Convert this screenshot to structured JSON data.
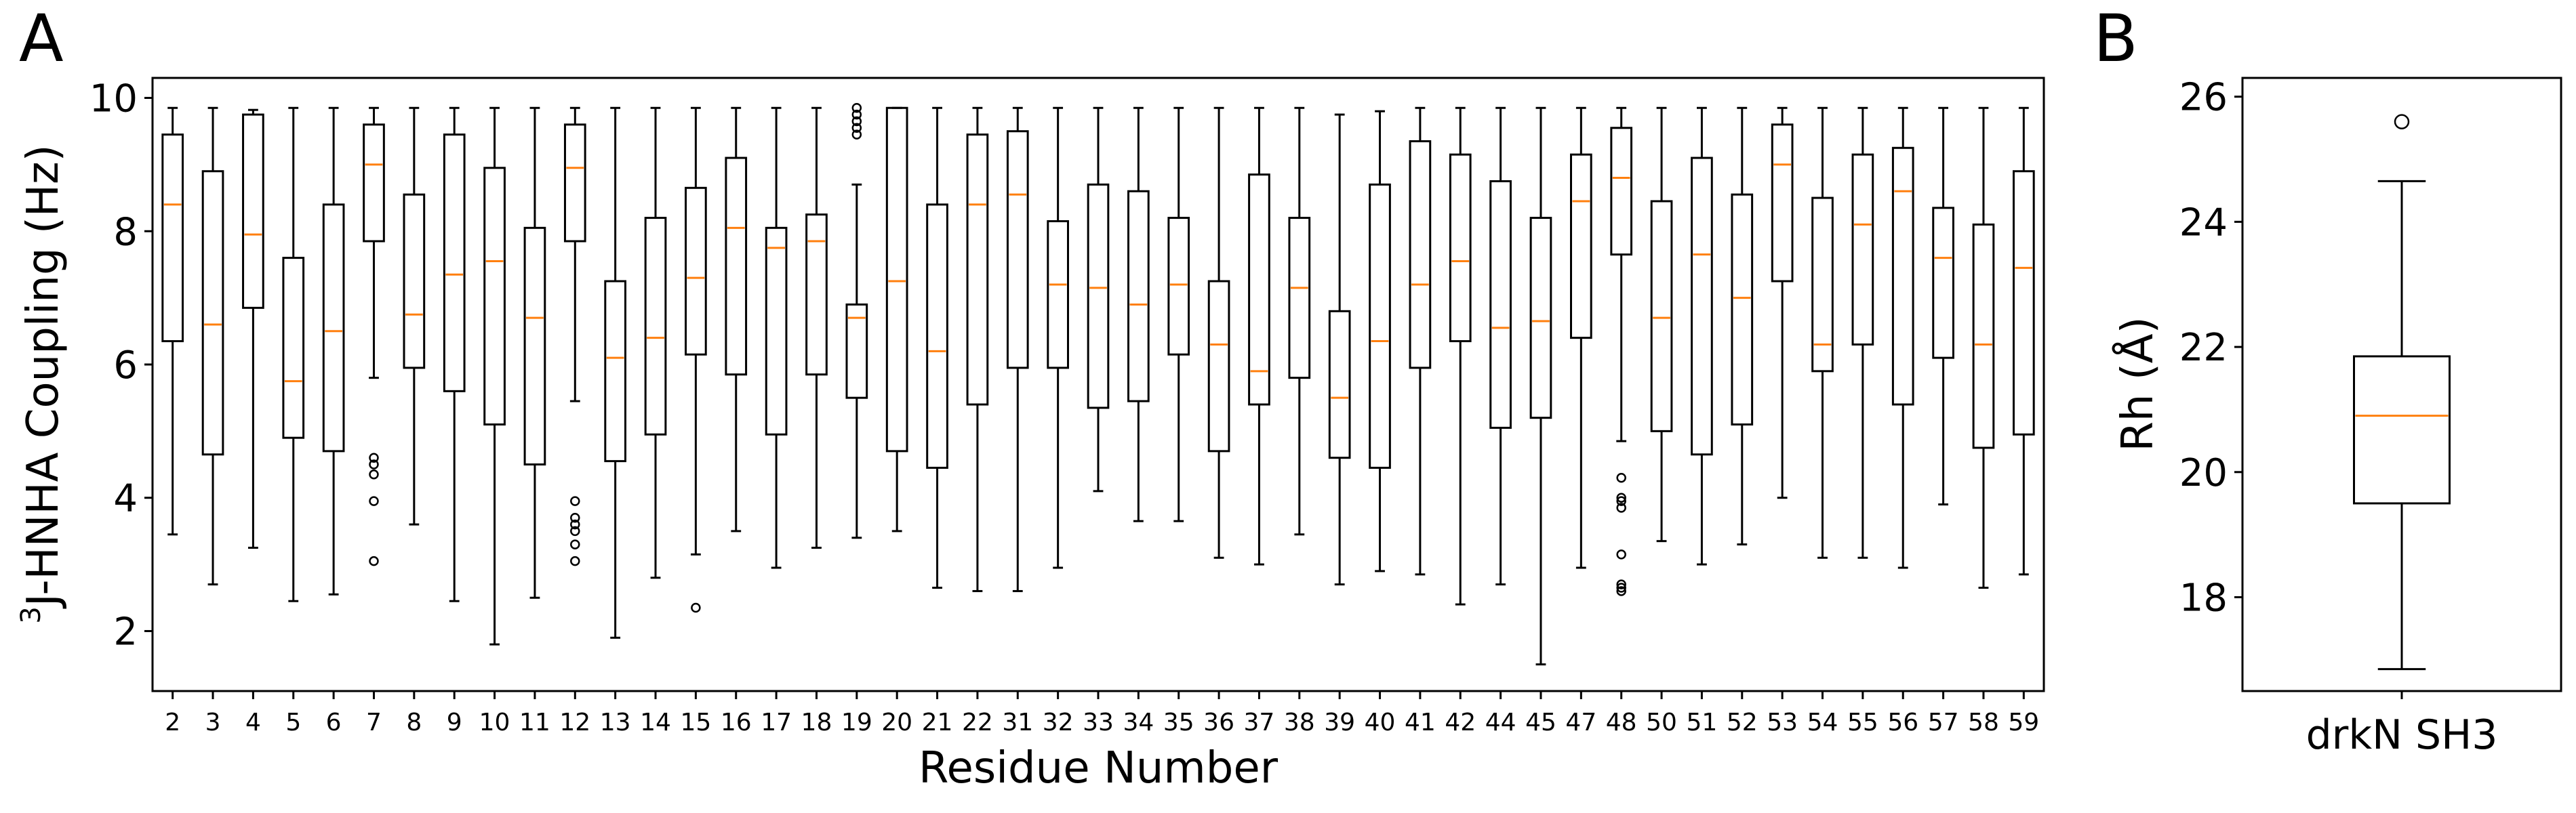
{
  "panel_labels": [
    "A",
    "B"
  ],
  "chart_data": [
    {
      "type": "box",
      "panel": "A",
      "xlabel": "Residue Number",
      "ylabel_sup": "3",
      "ylabel": "J-HNHA Coupling (Hz)",
      "ylim": [
        1.1,
        10.3
      ],
      "yticks": [
        2,
        4,
        6,
        8,
        10
      ],
      "grid": false,
      "colors": {
        "box": "#000000",
        "median": "#ff7f0e",
        "flier": "#000000"
      },
      "categories": [
        "2",
        "3",
        "4",
        "5",
        "6",
        "7",
        "8",
        "9",
        "10",
        "11",
        "12",
        "13",
        "14",
        "15",
        "16",
        "17",
        "18",
        "19",
        "20",
        "21",
        "22",
        "31",
        "32",
        "33",
        "34",
        "35",
        "36",
        "37",
        "38",
        "39",
        "40",
        "41",
        "42",
        "44",
        "45",
        "47",
        "48",
        "50",
        "51",
        "52",
        "53",
        "54",
        "55",
        "56",
        "57",
        "58",
        "59"
      ],
      "boxes": [
        {
          "whislo": 3.45,
          "q1": 6.35,
          "med": 8.4,
          "q3": 9.45,
          "whishi": 9.85,
          "fliers": []
        },
        {
          "whislo": 2.7,
          "q1": 4.65,
          "med": 6.6,
          "q3": 8.9,
          "whishi": 9.85,
          "fliers": []
        },
        {
          "whislo": 3.25,
          "q1": 6.85,
          "med": 7.95,
          "q3": 9.75,
          "whishi": 9.82,
          "fliers": []
        },
        {
          "whislo": 2.45,
          "q1": 4.9,
          "med": 5.75,
          "q3": 7.6,
          "whishi": 9.85,
          "fliers": []
        },
        {
          "whislo": 2.55,
          "q1": 4.7,
          "med": 6.5,
          "q3": 8.4,
          "whishi": 9.85,
          "fliers": []
        },
        {
          "whislo": 5.8,
          "q1": 7.85,
          "med": 9.0,
          "q3": 9.6,
          "whishi": 9.85,
          "fliers": [
            4.6,
            4.5,
            4.35,
            3.95,
            3.05
          ]
        },
        {
          "whislo": 3.6,
          "q1": 5.95,
          "med": 6.75,
          "q3": 8.55,
          "whishi": 9.85,
          "fliers": []
        },
        {
          "whislo": 2.45,
          "q1": 5.6,
          "med": 7.35,
          "q3": 9.45,
          "whishi": 9.85,
          "fliers": []
        },
        {
          "whislo": 1.8,
          "q1": 5.1,
          "med": 7.55,
          "q3": 8.95,
          "whishi": 9.85,
          "fliers": []
        },
        {
          "whislo": 2.5,
          "q1": 4.5,
          "med": 6.7,
          "q3": 8.05,
          "whishi": 9.85,
          "fliers": []
        },
        {
          "whislo": 5.45,
          "q1": 7.85,
          "med": 8.95,
          "q3": 9.6,
          "whishi": 9.85,
          "fliers": [
            3.95,
            3.7,
            3.6,
            3.5,
            3.3,
            3.05
          ]
        },
        {
          "whislo": 1.9,
          "q1": 4.55,
          "med": 6.1,
          "q3": 7.25,
          "whishi": 9.85,
          "fliers": []
        },
        {
          "whislo": 2.8,
          "q1": 4.95,
          "med": 6.4,
          "q3": 8.2,
          "whishi": 9.85,
          "fliers": []
        },
        {
          "whislo": 3.15,
          "q1": 6.15,
          "med": 7.3,
          "q3": 8.65,
          "whishi": 9.85,
          "fliers": [
            2.35
          ]
        },
        {
          "whislo": 3.5,
          "q1": 5.85,
          "med": 8.05,
          "q3": 9.1,
          "whishi": 9.85,
          "fliers": []
        },
        {
          "whislo": 2.95,
          "q1": 4.95,
          "med": 7.75,
          "q3": 8.05,
          "whishi": 9.85,
          "fliers": []
        },
        {
          "whislo": 3.25,
          "q1": 5.85,
          "med": 7.85,
          "q3": 8.25,
          "whishi": 9.85,
          "fliers": []
        },
        {
          "whislo": 3.4,
          "q1": 5.5,
          "med": 6.7,
          "q3": 6.9,
          "whishi": 8.7,
          "fliers": [
            9.85,
            9.75,
            9.65,
            9.55,
            9.45
          ]
        },
        {
          "whislo": 3.5,
          "q1": 4.7,
          "med": 7.25,
          "q3": 9.85,
          "whishi": 9.85,
          "fliers": []
        },
        {
          "whislo": 2.65,
          "q1": 4.45,
          "med": 6.2,
          "q3": 8.4,
          "whishi": 9.85,
          "fliers": []
        },
        {
          "whislo": 2.6,
          "q1": 5.4,
          "med": 8.4,
          "q3": 9.45,
          "whishi": 9.85,
          "fliers": []
        },
        {
          "whislo": 2.6,
          "q1": 5.95,
          "med": 8.55,
          "q3": 9.5,
          "whishi": 9.85,
          "fliers": []
        },
        {
          "whislo": 2.95,
          "q1": 5.95,
          "med": 7.2,
          "q3": 8.15,
          "whishi": 9.85,
          "fliers": []
        },
        {
          "whislo": 4.1,
          "q1": 5.35,
          "med": 7.15,
          "q3": 8.7,
          "whishi": 9.85,
          "fliers": []
        },
        {
          "whislo": 3.65,
          "q1": 5.45,
          "med": 6.9,
          "q3": 8.6,
          "whishi": 9.85,
          "fliers": []
        },
        {
          "whislo": 3.65,
          "q1": 6.15,
          "med": 7.2,
          "q3": 8.2,
          "whishi": 9.85,
          "fliers": []
        },
        {
          "whislo": 3.1,
          "q1": 4.7,
          "med": 6.3,
          "q3": 7.25,
          "whishi": 9.85,
          "fliers": []
        },
        {
          "whislo": 3.0,
          "q1": 5.4,
          "med": 5.9,
          "q3": 8.85,
          "whishi": 9.85,
          "fliers": []
        },
        {
          "whislo": 3.45,
          "q1": 5.8,
          "med": 7.15,
          "q3": 8.2,
          "whishi": 9.85,
          "fliers": []
        },
        {
          "whislo": 2.7,
          "q1": 4.6,
          "med": 5.5,
          "q3": 6.8,
          "whishi": 9.75,
          "fliers": []
        },
        {
          "whislo": 2.9,
          "q1": 4.45,
          "med": 6.35,
          "q3": 8.7,
          "whishi": 9.8,
          "fliers": []
        },
        {
          "whislo": 2.85,
          "q1": 5.95,
          "med": 7.2,
          "q3": 9.35,
          "whishi": 9.85,
          "fliers": []
        },
        {
          "whislo": 2.4,
          "q1": 6.35,
          "med": 7.55,
          "q3": 9.15,
          "whishi": 9.85,
          "fliers": []
        },
        {
          "whislo": 2.7,
          "q1": 5.05,
          "med": 6.55,
          "q3": 8.75,
          "whishi": 9.85,
          "fliers": []
        },
        {
          "whislo": 1.5,
          "q1": 5.2,
          "med": 6.65,
          "q3": 8.2,
          "whishi": 9.85,
          "fliers": []
        },
        {
          "whislo": 2.95,
          "q1": 6.4,
          "med": 8.45,
          "q3": 9.15,
          "whishi": 9.85,
          "fliers": []
        },
        {
          "whislo": 4.85,
          "q1": 7.65,
          "med": 8.8,
          "q3": 9.55,
          "whishi": 9.85,
          "fliers": [
            4.3,
            4.0,
            3.95,
            3.85,
            3.15,
            2.7,
            2.65,
            2.6
          ]
        },
        {
          "whislo": 3.35,
          "q1": 5.0,
          "med": 6.7,
          "q3": 8.45,
          "whishi": 9.85,
          "fliers": []
        },
        {
          "whislo": 3.0,
          "q1": 4.65,
          "med": 7.65,
          "q3": 9.1,
          "whishi": 9.85,
          "fliers": []
        },
        {
          "whislo": 3.3,
          "q1": 5.1,
          "med": 7.0,
          "q3": 8.55,
          "whishi": 9.85,
          "fliers": []
        },
        {
          "whislo": 4.0,
          "q1": 7.25,
          "med": 9.0,
          "q3": 9.6,
          "whishi": 9.85,
          "fliers": []
        },
        {
          "whislo": 3.1,
          "q1": 5.9,
          "med": 6.3,
          "q3": 8.5,
          "whishi": 9.85,
          "fliers": []
        },
        {
          "whislo": 3.1,
          "q1": 6.3,
          "med": 8.1,
          "q3": 9.15,
          "whishi": 9.85,
          "fliers": []
        },
        {
          "whislo": 2.95,
          "q1": 5.4,
          "med": 8.6,
          "q3": 9.25,
          "whishi": 9.85,
          "fliers": []
        },
        {
          "whislo": 3.9,
          "q1": 6.1,
          "med": 7.6,
          "q3": 8.35,
          "whishi": 9.85,
          "fliers": []
        },
        {
          "whislo": 2.65,
          "q1": 4.75,
          "med": 6.3,
          "q3": 8.1,
          "whishi": 9.85,
          "fliers": []
        },
        {
          "whislo": 2.85,
          "q1": 4.95,
          "med": 7.45,
          "q3": 8.9,
          "whishi": 9.85,
          "fliers": []
        }
      ]
    },
    {
      "type": "box",
      "panel": "B",
      "xlabel": "",
      "ylabel": "Rh (Å)",
      "ylim": [
        16.5,
        26.3
      ],
      "yticks": [
        18,
        20,
        22,
        24,
        26
      ],
      "grid": false,
      "colors": {
        "box": "#000000",
        "median": "#ff7f0e",
        "flier": "#000000"
      },
      "categories": [
        "drkN SH3"
      ],
      "boxes": [
        {
          "whislo": 16.85,
          "q1": 19.5,
          "med": 20.9,
          "q3": 21.85,
          "whishi": 24.65,
          "fliers": [
            25.6
          ]
        }
      ]
    }
  ]
}
